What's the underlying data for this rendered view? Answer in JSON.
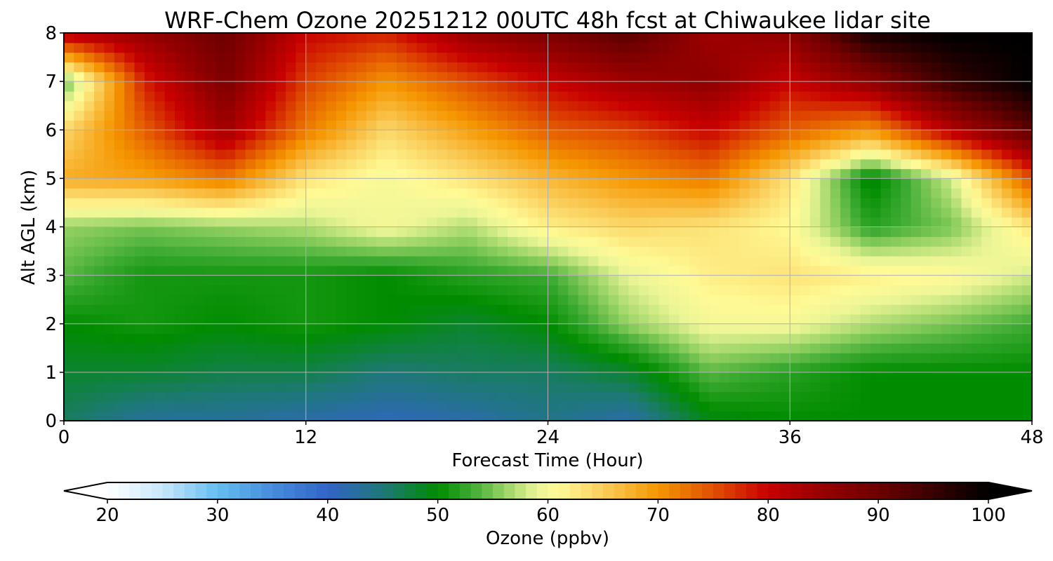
{
  "chart_data": {
    "type": "heatmap",
    "title": "WRF-Chem Ozone  20251212 00UTC 48h fcst at Chiwaukee lidar site",
    "xlabel": "Forecast Time (Hour)",
    "ylabel": "Alt AGL (km)",
    "xlim": [
      0,
      48
    ],
    "ylim": [
      0,
      8
    ],
    "xticks": [
      0,
      12,
      24,
      36,
      48
    ],
    "yticks": [
      0,
      1,
      2,
      3,
      4,
      5,
      6,
      7,
      8
    ],
    "grid": true,
    "x": [
      0,
      4,
      8,
      12,
      16,
      20,
      24,
      28,
      32,
      36,
      40,
      44,
      48
    ],
    "y": [
      0,
      1,
      2,
      3,
      4,
      5,
      6,
      7,
      8
    ],
    "z": [
      [
        46,
        43,
        43,
        42,
        41,
        42,
        44,
        42,
        49,
        50,
        50,
        50,
        50
      ],
      [
        48,
        48,
        47,
        47,
        45,
        46,
        46,
        48,
        54,
        52,
        50,
        50,
        50
      ],
      [
        50,
        51,
        50,
        51,
        50,
        48,
        50,
        56,
        60,
        60,
        57,
        55,
        53
      ],
      [
        54,
        51,
        51,
        51,
        50,
        52,
        53,
        59,
        62,
        63,
        62,
        61,
        58
      ],
      [
        56,
        55,
        56,
        57,
        60,
        57,
        62,
        64,
        63,
        61,
        52,
        55,
        63
      ],
      [
        68,
        69,
        72,
        63,
        60,
        63,
        67,
        70,
        72,
        63,
        49,
        58,
        75
      ],
      [
        64,
        74,
        84,
        72,
        64,
        69,
        74,
        76,
        80,
        74,
        70,
        82,
        92
      ],
      [
        54,
        78,
        88,
        76,
        70,
        75,
        80,
        84,
        86,
        80,
        86,
        95,
        100
      ],
      [
        82,
        85,
        90,
        80,
        78,
        85,
        88,
        92,
        84,
        86,
        98,
        100,
        100
      ]
    ],
    "colorbar": {
      "label": "Ozone  (ppbv)",
      "min": 20,
      "max": 100,
      "ticks": [
        20,
        30,
        40,
        50,
        60,
        70,
        80,
        90,
        100
      ],
      "extend": "both"
    }
  }
}
